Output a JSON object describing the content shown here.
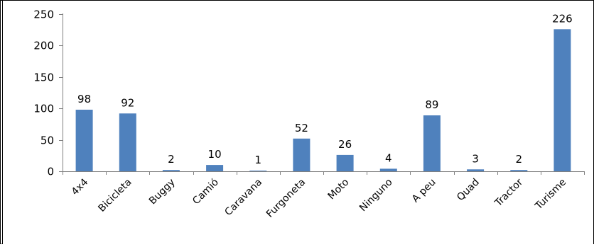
{
  "chart_data": {
    "type": "bar",
    "title": "",
    "xlabel": "",
    "ylabel": "",
    "categories": [
      "4x4",
      "Bicicleta",
      "Buggy",
      "Camió",
      "Caravana",
      "Furgoneta",
      "Moto",
      "Ninguno",
      "A peu",
      "Quad",
      "Tractor",
      "Turisme"
    ],
    "values": [
      98,
      92,
      2,
      10,
      1,
      52,
      26,
      4,
      89,
      3,
      2,
      226
    ],
    "ylim": [
      0,
      250
    ],
    "yticks": [
      0,
      50,
      100,
      150,
      200,
      250
    ],
    "data_labels_shown": true,
    "grid": false,
    "legend": "none",
    "colors": {
      "bar": "#4F81BD",
      "axis": "#808080",
      "border": "#000000"
    }
  }
}
